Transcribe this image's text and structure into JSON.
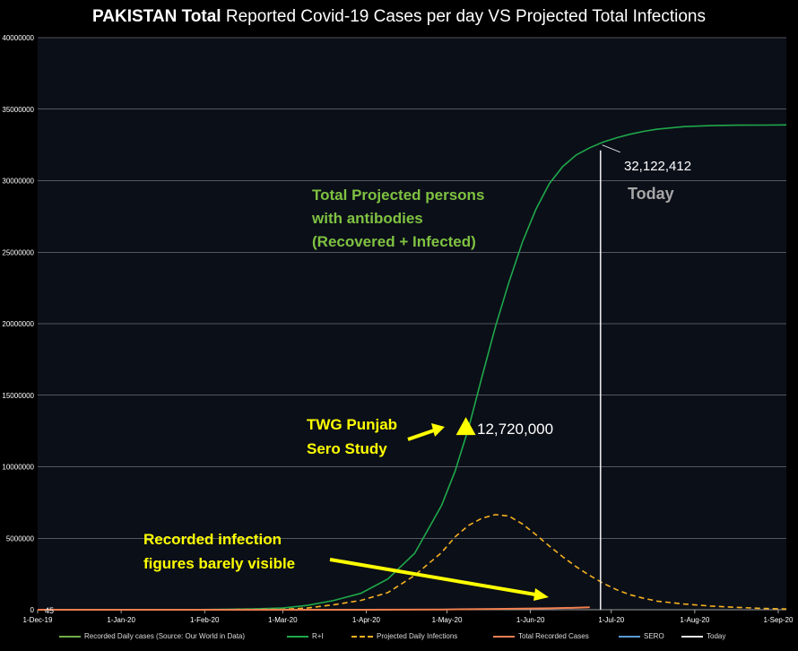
{
  "title": {
    "bold": "PAKISTAN Total",
    "rest": "Reported Covid-19 Cases per day VS Projected Total Infections"
  },
  "colors": {
    "background": "#0b0f18",
    "grid": "#bfc4cc",
    "projected_total": "#1fa84a",
    "projected_daily": "#f5b120",
    "recorded": "#f08050",
    "today_line": "#e8e8e8",
    "annotation_green": "#7fc241",
    "annotation_yellow": "#ffff00",
    "today_label": "#a6a6a6"
  },
  "chart_data": {
    "type": "line",
    "title": "PAKISTAN Total Reported Covid-19 Cases per day VS Projected Total Infections",
    "xlabel": "",
    "ylabel": "",
    "ylim": [
      0,
      40000000
    ],
    "yticks": [
      "0",
      "5000000",
      "10000000",
      "15000000",
      "20000000",
      "25000000",
      "30000000",
      "35000000",
      "40000000"
    ],
    "xlim_days": [
      0,
      278
    ],
    "xticks": [
      {
        "label": "1-Dec-19",
        "day": 0
      },
      {
        "label": "1-Jan-20",
        "day": 31
      },
      {
        "label": "1-Feb-20",
        "day": 62
      },
      {
        "label": "1-Mar-20",
        "day": 91
      },
      {
        "label": "1-Apr-20",
        "day": 122
      },
      {
        "label": "1-May-20",
        "day": 152
      },
      {
        "label": "1-Jun-20",
        "day": 183
      },
      {
        "label": "1-Jul-20",
        "day": 213
      },
      {
        "label": "1-Aug-20",
        "day": 244
      },
      {
        "label": "1-Sep-20",
        "day": 275
      }
    ],
    "series": [
      {
        "name": "R+I",
        "x": [
          0,
          60,
          80,
          91,
          100,
          110,
          120,
          130,
          140,
          150,
          155,
          160,
          165,
          170,
          175,
          180,
          185,
          190,
          195,
          200,
          205,
          210,
          215,
          220,
          225,
          230,
          240,
          250,
          260,
          270,
          278
        ],
        "values": [
          0,
          10000,
          60000,
          120000,
          300000,
          650000,
          1150000,
          2150000,
          3950000,
          7300000,
          9700000,
          12700000,
          16300000,
          19800000,
          22900000,
          25700000,
          28000000,
          29800000,
          31000000,
          31800000,
          32300000,
          32700000,
          33000000,
          33250000,
          33450000,
          33600000,
          33780000,
          33850000,
          33880000,
          33890000,
          33900000
        ]
      },
      {
        "name": "Projected Daily Infections",
        "x": [
          0,
          60,
          91,
          100,
          110,
          120,
          130,
          140,
          150,
          155,
          160,
          165,
          170,
          175,
          180,
          185,
          190,
          195,
          200,
          205,
          210,
          215,
          220,
          225,
          230,
          240,
          250,
          260,
          270,
          278
        ],
        "values": [
          0,
          5000,
          30000,
          120000,
          350000,
          650000,
          1200000,
          2400000,
          4000000,
          5100000,
          5900000,
          6400000,
          6650000,
          6550000,
          6000000,
          5250000,
          4450000,
          3700000,
          3000000,
          2400000,
          1850000,
          1400000,
          1050000,
          800000,
          600000,
          400000,
          260000,
          160000,
          90000,
          50000
        ]
      },
      {
        "name": "Total Recorded Cases",
        "x": [
          0,
          91,
          120,
          150,
          170,
          180,
          190,
          200,
          205
        ],
        "values": [
          45,
          5,
          2000,
          18000,
          55000,
          75000,
          100000,
          140000,
          170000
        ]
      }
    ],
    "points": [
      {
        "name": "SERO",
        "x": 159,
        "y": 12720000,
        "label": "12,720,000"
      }
    ],
    "today": {
      "x": 209,
      "label": "Today",
      "value_label": "32,122,412"
    },
    "first_value_label": "45",
    "annotations": [
      "Total Projected persons",
      "with antibodies",
      "(Recovered + Infected)",
      "TWG Punjab",
      "Sero Study",
      "Recorded infection",
      "figures barely visible"
    ],
    "legend": [
      {
        "label": "Recorded Daily cases (Source: Our World in Data)"
      },
      {
        "label": "R+I"
      },
      {
        "label": "Projected Daily Infections"
      },
      {
        "label": "Total Recorded Cases"
      },
      {
        "label": "SERO"
      },
      {
        "label": "Today"
      }
    ]
  }
}
